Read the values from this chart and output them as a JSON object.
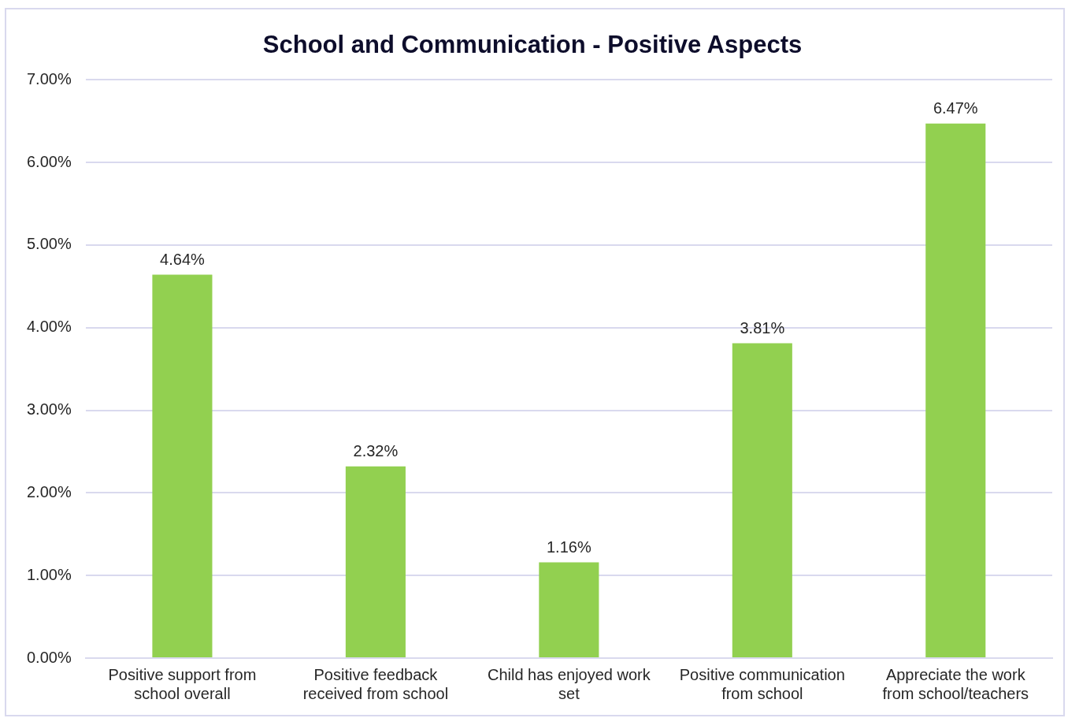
{
  "chart_data": {
    "type": "bar",
    "title": "School and Communication - Positive Aspects",
    "categories": [
      "Positive support from school overall",
      "Positive feedback received from school",
      "Child has enjoyed work set",
      "Positive communication from school",
      "Appreciate the work from school/teachers"
    ],
    "values": [
      4.64,
      2.32,
      1.16,
      3.81,
      6.47
    ],
    "value_labels": [
      "4.64%",
      "2.32%",
      "1.16%",
      "3.81%",
      "6.47%"
    ],
    "color": "#92d050",
    "ylim": [
      0,
      7
    ],
    "yticks": [
      {
        "value": 0,
        "label": "0.00%"
      },
      {
        "value": 1,
        "label": "1.00%"
      },
      {
        "value": 2,
        "label": "2.00%"
      },
      {
        "value": 3,
        "label": "3.00%"
      },
      {
        "value": 4,
        "label": "4.00%"
      },
      {
        "value": 5,
        "label": "5.00%"
      },
      {
        "value": 6,
        "label": "6.00%"
      },
      {
        "value": 7,
        "label": "7.00%"
      }
    ],
    "grid": "y"
  }
}
